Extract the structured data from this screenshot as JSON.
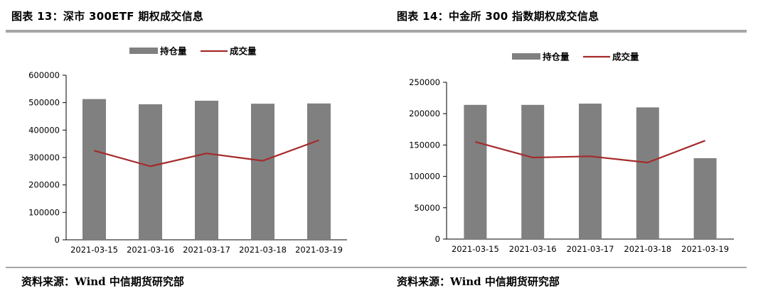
{
  "figures": [
    {
      "title": "图表 13：深市 300ETF 期权成交信息",
      "source": "资料来源：Wind  中信期货研究部"
    },
    {
      "title": "图表 14：中金所 300 指数期权成交信息",
      "source": "资料来源：Wind  中信期货研究部"
    }
  ],
  "colors": {
    "bar": "#808080",
    "line": "#a52a2a",
    "rule": "#a6a6a6"
  },
  "chart_data": [
    {
      "type": "bar",
      "categories": [
        "2021-03-15",
        "2021-03-16",
        "2021-03-17",
        "2021-03-18",
        "2021-03-19"
      ],
      "series": [
        {
          "name": "持仓量",
          "kind": "bar",
          "values": [
            513000,
            494000,
            507000,
            496000,
            497000
          ]
        },
        {
          "name": "成交量",
          "kind": "line",
          "values": [
            325000,
            268000,
            315000,
            288000,
            363000
          ]
        }
      ],
      "title": "",
      "xlabel": "",
      "ylabel": "",
      "ylim": [
        0,
        600000
      ],
      "yticks": [
        0,
        100000,
        200000,
        300000,
        400000,
        500000,
        600000
      ],
      "legend": "top-center",
      "grid": false
    },
    {
      "type": "bar",
      "categories": [
        "2021-03-15",
        "2021-03-16",
        "2021-03-17",
        "2021-03-18",
        "2021-03-19"
      ],
      "series": [
        {
          "name": "持仓量",
          "kind": "bar",
          "values": [
            214000,
            214000,
            216000,
            210000,
            129000
          ]
        },
        {
          "name": "成交量",
          "kind": "line",
          "values": [
            155000,
            130000,
            132000,
            122000,
            157000
          ]
        }
      ],
      "title": "",
      "xlabel": "",
      "ylabel": "",
      "ylim": [
        0,
        250000
      ],
      "yticks": [
        0,
        50000,
        100000,
        150000,
        200000,
        250000
      ],
      "legend": "top-center",
      "grid": false
    }
  ]
}
